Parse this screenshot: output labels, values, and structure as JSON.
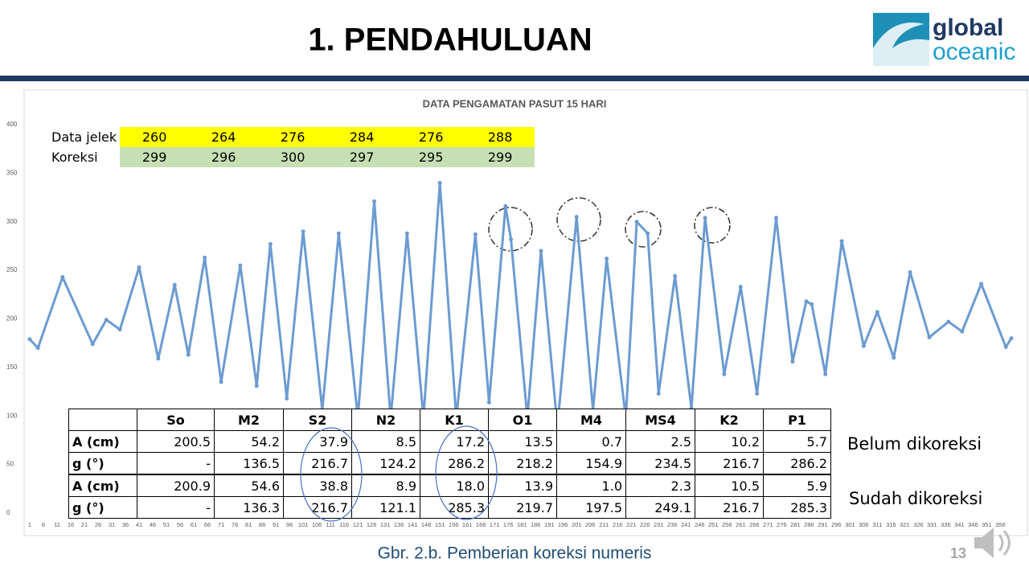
{
  "header": {
    "title": "1. PENDAHULUAN",
    "logo": [
      "global",
      "oceanic"
    ]
  },
  "chart_data": {
    "type": "line",
    "title": "DATA PENGAMATAN PASUT 15 HARI",
    "color": "#6b9bd1",
    "x": [
      1,
      4,
      13,
      24,
      29,
      34,
      41,
      48,
      54,
      59,
      65,
      71,
      78,
      84,
      89,
      95,
      101,
      108,
      114,
      121,
      127,
      133,
      139,
      145,
      151,
      157,
      164,
      169,
      175,
      177,
      183,
      188,
      194,
      201,
      207,
      212,
      219,
      223,
      227,
      231,
      237,
      243,
      248,
      255,
      261,
      267,
      274,
      280,
      285,
      287,
      292,
      298,
      306,
      311,
      317,
      323,
      330,
      337,
      342,
      349,
      358,
      360
    ],
    "values": [
      179,
      170,
      243,
      174,
      199,
      189,
      253,
      159,
      235,
      163,
      263,
      135,
      255,
      131,
      277,
      118,
      290,
      106,
      288,
      98,
      321,
      98,
      288,
      98,
      340,
      98,
      287,
      114,
      316,
      282,
      98,
      270,
      89,
      305,
      106,
      262,
      98,
      300,
      288,
      123,
      244,
      108,
      304,
      143,
      233,
      123,
      304,
      156,
      218,
      215,
      143,
      280,
      172,
      207,
      160,
      248,
      181,
      197,
      187,
      236,
      171,
      180
    ],
    "xlim": [
      1,
      360
    ],
    "ylim": [
      0,
      400
    ],
    "xticks": [
      1,
      6,
      11,
      16,
      21,
      26,
      31,
      36,
      41,
      46,
      51,
      56,
      61,
      66,
      71,
      76,
      81,
      86,
      91,
      96,
      101,
      106,
      111,
      116,
      121,
      126,
      131,
      136,
      141,
      146,
      151,
      156,
      161,
      166,
      171,
      176,
      181,
      186,
      191,
      196,
      201,
      206,
      211,
      216,
      221,
      226,
      231,
      236,
      241,
      246,
      251,
      256,
      261,
      266,
      271,
      276,
      281,
      286,
      291,
      296,
      301,
      306,
      311,
      316,
      321,
      326,
      331,
      336,
      341,
      346,
      351,
      356
    ],
    "yticks": [
      0,
      50,
      100,
      150,
      200,
      250,
      300,
      350,
      400
    ],
    "grid": false
  },
  "inset_table": {
    "rows": [
      [
        "Data jelek",
        "260",
        "264",
        "276",
        "284",
        "276",
        "288"
      ],
      [
        "Koreksi",
        "299",
        "296",
        "300",
        "297",
        "295",
        "299"
      ]
    ]
  },
  "table": {
    "header": [
      "",
      "So",
      "M2",
      "S2",
      "N2",
      "K1",
      "O1",
      "M4",
      "MS4",
      "K2",
      "P1"
    ],
    "rows": [
      [
        "A (cm)",
        "200.5",
        "54.2",
        "37.9",
        "8.5",
        "17.2",
        "13.5",
        "0.7",
        "2.5",
        "10.2",
        "5.7"
      ],
      [
        "g (°)",
        "-",
        "136.5",
        "216.7",
        "124.2",
        "286.2",
        "218.2",
        "154.9",
        "234.5",
        "216.7",
        "286.2"
      ],
      [
        "A (cm)",
        "200.9",
        "54.6",
        "38.8",
        "8.9",
        "18.0",
        "13.9",
        "1.0",
        "2.3",
        "10.5",
        "5.9"
      ],
      [
        "g (°)",
        "-",
        "136.3",
        "216.7",
        "121.1",
        "285.3",
        "219.7",
        "197.5",
        "249.1",
        "216.7",
        "285.3"
      ]
    ]
  },
  "notes": [
    "Belum dikoreksi",
    "Sudah dikoreksi"
  ],
  "caption": "Gbr. 2.b. Pemberian koreksi numeris",
  "page_number": "13"
}
